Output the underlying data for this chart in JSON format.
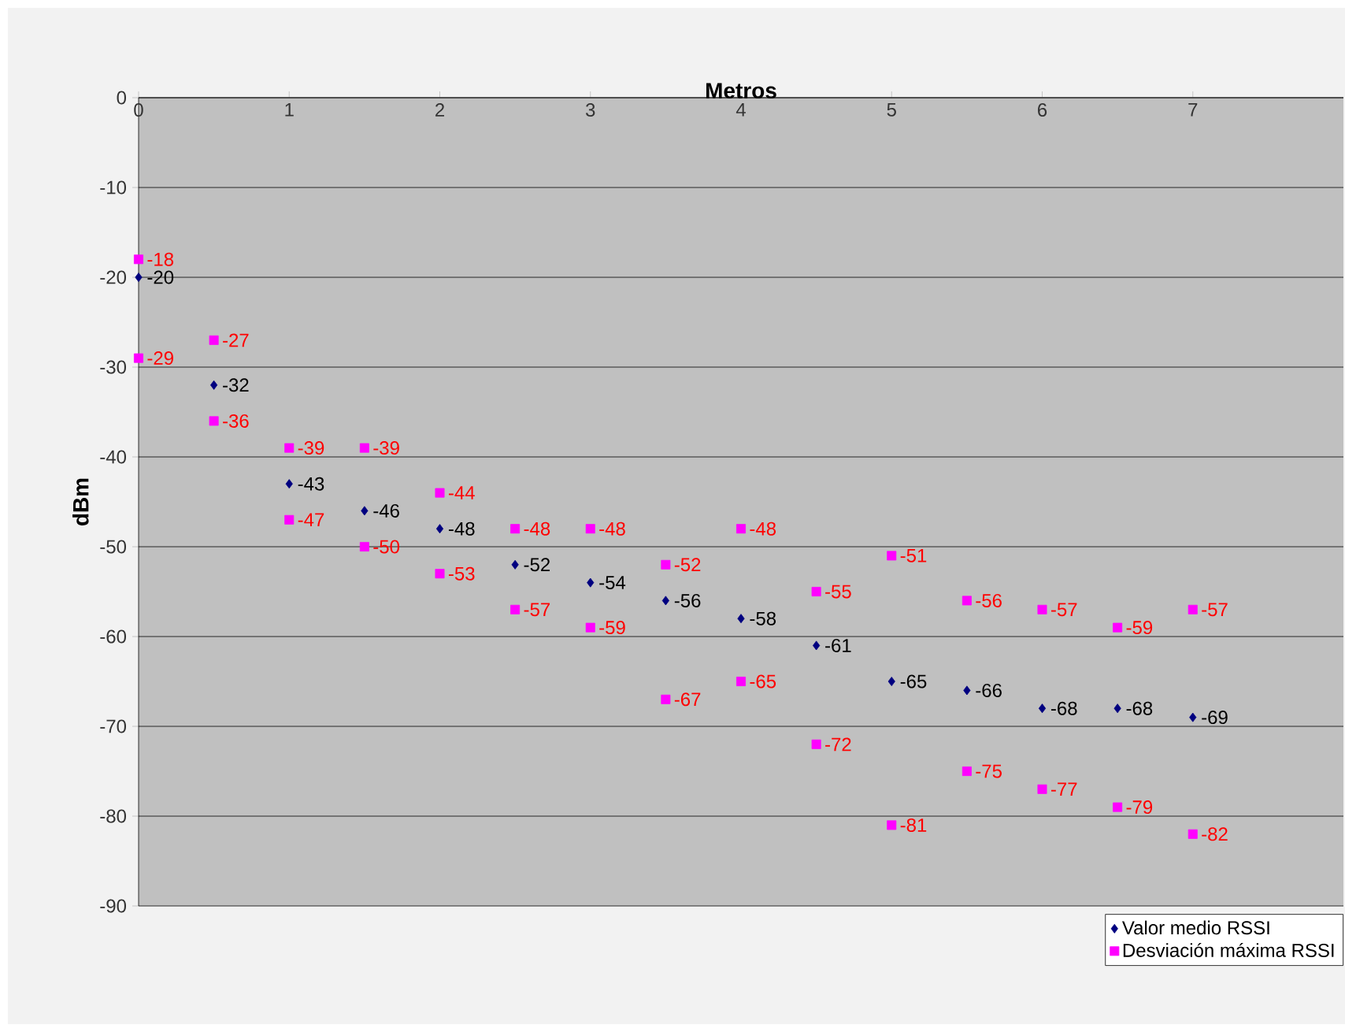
{
  "chart_data": {
    "type": "scatter",
    "xlabel": "Metros",
    "ylabel": "dBm",
    "xlim": [
      0,
      8
    ],
    "xticks": [
      0,
      1,
      2,
      3,
      4,
      5,
      6,
      7
    ],
    "ylim": [
      -90,
      0
    ],
    "yticks": [
      -90,
      -80,
      -70,
      -60,
      -50,
      -40,
      -30,
      -20,
      -10,
      0
    ],
    "grid": "y",
    "legend": "bottom right",
    "data_labels": true,
    "series": [
      {
        "name": "Valor medio RSSI",
        "color": "#000080",
        "marker": "diamond",
        "x": [
          0,
          0.5,
          1,
          1.5,
          2,
          2.5,
          3,
          3.5,
          4,
          4.5,
          5,
          5.5,
          6,
          6.5,
          7
        ],
        "values": [
          -20,
          -32,
          -43,
          -46,
          -48,
          -52,
          -54,
          -56,
          -58,
          -61,
          -65,
          -66,
          -68,
          -68,
          -69
        ]
      },
      {
        "name": "Desviación máxima RSSI",
        "color": "#ff00ff",
        "marker": "square",
        "x": [
          0,
          0,
          0.5,
          0.5,
          1,
          1,
          1.5,
          1.5,
          2,
          2,
          2.5,
          2.5,
          3,
          3,
          3.5,
          3.5,
          4,
          4,
          4.5,
          4.5,
          5,
          5,
          5.5,
          5.5,
          6,
          6,
          6.5,
          6.5,
          7,
          7
        ],
        "values": [
          -18,
          -29,
          -27,
          -36,
          -39,
          -47,
          -39,
          -50,
          -44,
          -53,
          -48,
          -57,
          -48,
          -59,
          -52,
          -67,
          -48,
          -65,
          -55,
          -72,
          -51,
          -81,
          -56,
          -75,
          -57,
          -77,
          -59,
          -79,
          -57,
          -82
        ]
      }
    ]
  }
}
